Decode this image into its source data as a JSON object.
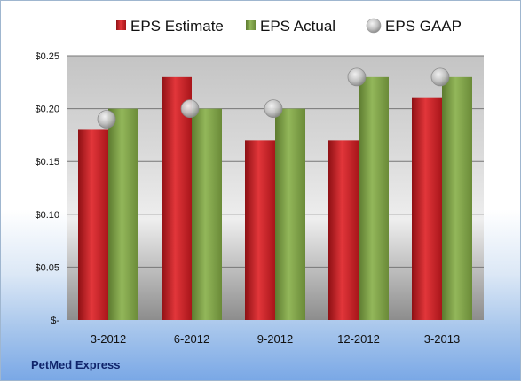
{
  "company": "PetMed Express",
  "chart_data": {
    "type": "bar",
    "categories": [
      "3-2012",
      "6-2012",
      "9-2012",
      "12-2012",
      "3-2013"
    ],
    "series": [
      {
        "name": "EPS Estimate",
        "kind": "bar",
        "color": "#c41e23",
        "values": [
          0.18,
          0.23,
          0.17,
          0.17,
          0.21
        ]
      },
      {
        "name": "EPS Actual",
        "kind": "bar",
        "color": "#7ea04a",
        "values": [
          0.2,
          0.2,
          0.2,
          0.23,
          0.23
        ]
      },
      {
        "name": "EPS GAAP",
        "kind": "marker",
        "color": "#b9b9b9",
        "values": [
          0.19,
          0.2,
          0.2,
          0.23,
          0.23
        ]
      }
    ],
    "y_ticks": [
      {
        "value": 0,
        "label": "$-"
      },
      {
        "value": 0.05,
        "label": "$0.05"
      },
      {
        "value": 0.1,
        "label": "$0.10"
      },
      {
        "value": 0.15,
        "label": "$0.15"
      },
      {
        "value": 0.2,
        "label": "$0.20"
      },
      {
        "value": 0.25,
        "label": "$0.25"
      }
    ],
    "ylim": [
      0,
      0.25
    ],
    "grid": true,
    "legend_position": "top"
  }
}
